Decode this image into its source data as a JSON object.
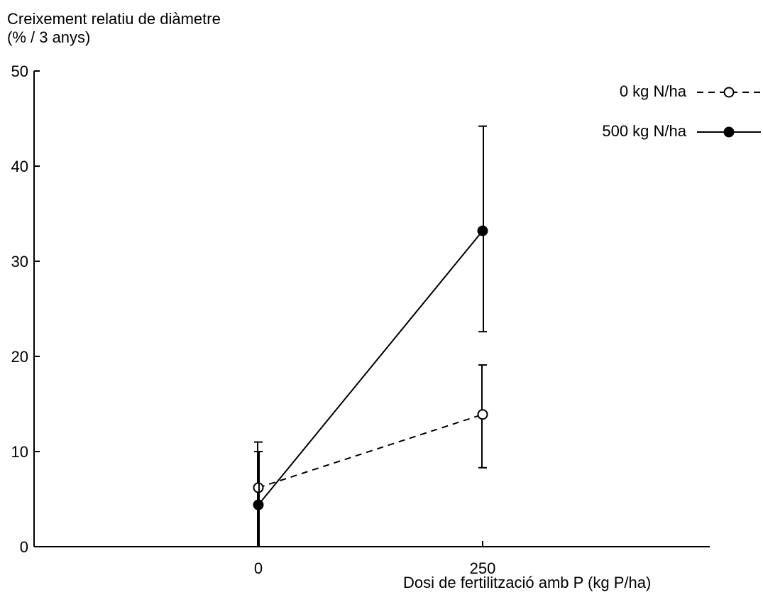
{
  "chart_data": {
    "type": "line",
    "title": "",
    "ylabel_lines": [
      "Creixement relatiu de diàmetre",
      "(% / 3 anys)"
    ],
    "xlabel": "Dosi de fertilització amb P (kg P/ha)",
    "x_categories": [
      "0",
      "250"
    ],
    "y_ticks": [
      "0",
      "10",
      "20",
      "30",
      "40",
      "50"
    ],
    "ylim": [
      0,
      50
    ],
    "legend_position": "top-right",
    "series": [
      {
        "name": "0 kg N/ha",
        "line_style": "dashed",
        "marker": "open-circle",
        "values": [
          6.2,
          13.9
        ],
        "error_low": [
          0,
          8.3
        ],
        "error_high": [
          11.0,
          19.1
        ]
      },
      {
        "name": "500 kg N/ha",
        "line_style": "solid",
        "marker": "filled-circle",
        "values": [
          4.4,
          33.2
        ],
        "error_low": [
          0,
          22.6
        ],
        "error_high": [
          10.0,
          44.2
        ]
      }
    ],
    "colors": {
      "ink": "#000000",
      "background": "#ffffff"
    }
  }
}
